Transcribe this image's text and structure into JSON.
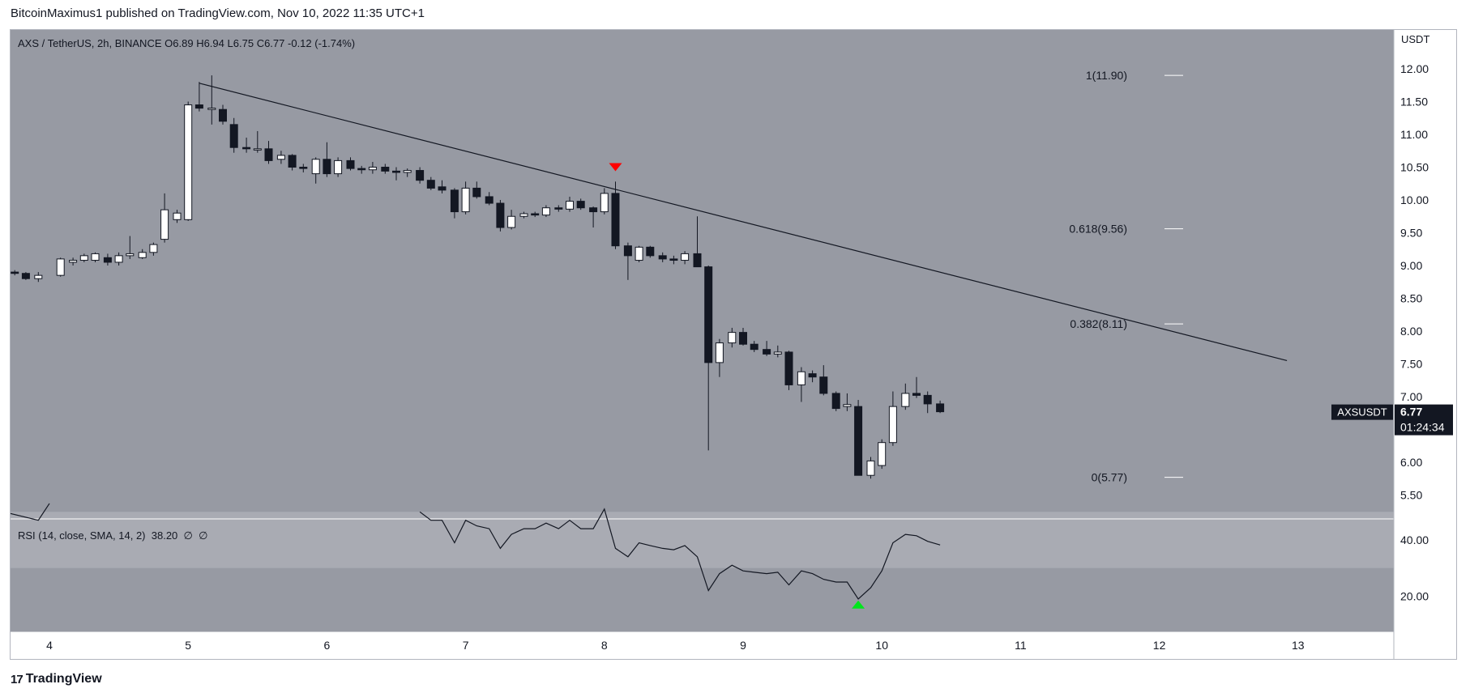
{
  "header": {
    "publisher_line": "BitcoinMaximus1 published on TradingView.com, Nov 10, 2022 11:35 UTC+1"
  },
  "legend": {
    "symbol": "AXS / TetherUS, 2h, BINANCE",
    "o_label": "O",
    "o_value": "6.89",
    "h_label": "H",
    "h_value": "6.94",
    "l_label": "L",
    "l_value": "6.75",
    "c_label": "C",
    "c_value": "6.77",
    "change": "-0.12 (-1.74%)"
  },
  "rsi_legend": {
    "label": "RSI (14, close, SMA, 14, 2)",
    "value": "38.20",
    "extra1": "∅",
    "extra2": "∅"
  },
  "price_axis": {
    "currency": "USDT",
    "ticks": [
      "12.00",
      "11.50",
      "11.00",
      "10.50",
      "10.00",
      "9.50",
      "9.00",
      "8.50",
      "8.00",
      "7.50",
      "7.00",
      "6.50",
      "6.00",
      "5.50"
    ]
  },
  "rsi_axis": {
    "ticks": [
      "40.00",
      "20.00"
    ]
  },
  "time_axis": {
    "ticks": [
      "4",
      "5",
      "6",
      "7",
      "8",
      "9",
      "10",
      "11",
      "12",
      "13"
    ]
  },
  "last_price": {
    "symbol": "AXSUSDT",
    "price": "6.77",
    "countdown": "01:24:34"
  },
  "fib_levels": [
    {
      "label": "1(11.90)",
      "price": 11.9
    },
    {
      "label": "0.618(9.56)",
      "price": 9.56
    },
    {
      "label": "0.382(8.11)",
      "price": 8.11
    },
    {
      "label": "0(5.77)",
      "price": 5.77
    }
  ],
  "footer": {
    "brand": "TradingView",
    "logo": "17"
  },
  "colors": {
    "pane_bg": "#979aa3",
    "rsi_band": "#a9abb3",
    "bull_candle": "#ffffff",
    "bear_candle": "#131722",
    "bear_marker": "#ff0000",
    "bull_marker": "#00e61c",
    "trend_line": "#131722",
    "rsi_line": "#131722"
  },
  "chart_data": {
    "type": "candlestick",
    "symbol": "AXS / TetherUS",
    "interval": "2h",
    "exchange": "BINANCE",
    "x_axis": {
      "ticks": [
        4,
        5,
        6,
        7,
        8,
        9,
        10,
        11,
        12,
        13
      ]
    },
    "y_range": [
      5.2,
      12.4
    ],
    "candles": [
      {
        "t": 3.67,
        "o": 8.92,
        "h": 8.95,
        "l": 8.88,
        "c": 8.9
      },
      {
        "t": 3.75,
        "o": 8.9,
        "h": 8.93,
        "l": 8.85,
        "c": 8.88
      },
      {
        "t": 3.83,
        "o": 8.88,
        "h": 8.9,
        "l": 8.78,
        "c": 8.8
      },
      {
        "t": 3.92,
        "o": 8.8,
        "h": 8.9,
        "l": 8.75,
        "c": 8.85
      },
      {
        "t": 4.08,
        "o": 8.85,
        "h": 9.12,
        "l": 8.83,
        "c": 9.1
      },
      {
        "t": 4.17,
        "o": 9.05,
        "h": 9.12,
        "l": 9.0,
        "c": 9.08
      },
      {
        "t": 4.25,
        "o": 9.08,
        "h": 9.18,
        "l": 9.05,
        "c": 9.15
      },
      {
        "t": 4.33,
        "o": 9.08,
        "h": 9.2,
        "l": 9.05,
        "c": 9.18
      },
      {
        "t": 4.42,
        "o": 9.12,
        "h": 9.18,
        "l": 9.0,
        "c": 9.05
      },
      {
        "t": 4.5,
        "o": 9.05,
        "h": 9.2,
        "l": 9.0,
        "c": 9.15
      },
      {
        "t": 4.58,
        "o": 9.15,
        "h": 9.45,
        "l": 9.1,
        "c": 9.18
      },
      {
        "t": 4.67,
        "o": 9.12,
        "h": 9.25,
        "l": 9.1,
        "c": 9.2
      },
      {
        "t": 4.75,
        "o": 9.2,
        "h": 9.35,
        "l": 9.15,
        "c": 9.32
      },
      {
        "t": 4.83,
        "o": 9.4,
        "h": 10.1,
        "l": 9.35,
        "c": 9.85
      },
      {
        "t": 4.92,
        "o": 9.7,
        "h": 9.85,
        "l": 9.65,
        "c": 9.8
      },
      {
        "t": 5.0,
        "o": 9.7,
        "h": 11.5,
        "l": 9.68,
        "c": 11.45
      },
      {
        "t": 5.08,
        "o": 11.45,
        "h": 11.8,
        "l": 11.35,
        "c": 11.4
      },
      {
        "t": 5.17,
        "o": 11.38,
        "h": 11.9,
        "l": 11.15,
        "c": 11.4
      },
      {
        "t": 5.25,
        "o": 11.38,
        "h": 11.45,
        "l": 11.15,
        "c": 11.2
      },
      {
        "t": 5.33,
        "o": 11.15,
        "h": 11.25,
        "l": 10.72,
        "c": 10.8
      },
      {
        "t": 5.42,
        "o": 10.8,
        "h": 10.95,
        "l": 10.72,
        "c": 10.78
      },
      {
        "t": 5.5,
        "o": 10.78,
        "h": 11.05,
        "l": 10.72,
        "c": 10.78
      },
      {
        "t": 5.58,
        "o": 10.78,
        "h": 10.9,
        "l": 10.55,
        "c": 10.6
      },
      {
        "t": 5.67,
        "o": 10.62,
        "h": 10.75,
        "l": 10.55,
        "c": 10.68
      },
      {
        "t": 5.75,
        "o": 10.68,
        "h": 10.7,
        "l": 10.45,
        "c": 10.5
      },
      {
        "t": 5.83,
        "o": 10.5,
        "h": 10.55,
        "l": 10.42,
        "c": 10.48
      },
      {
        "t": 5.92,
        "o": 10.4,
        "h": 10.65,
        "l": 10.25,
        "c": 10.62
      },
      {
        "t": 6.0,
        "o": 10.62,
        "h": 10.88,
        "l": 10.35,
        "c": 10.4
      },
      {
        "t": 6.08,
        "o": 10.4,
        "h": 10.65,
        "l": 10.35,
        "c": 10.6
      },
      {
        "t": 6.17,
        "o": 10.6,
        "h": 10.65,
        "l": 10.45,
        "c": 10.48
      },
      {
        "t": 6.25,
        "o": 10.48,
        "h": 10.52,
        "l": 10.4,
        "c": 10.46
      },
      {
        "t": 6.33,
        "o": 10.46,
        "h": 10.58,
        "l": 10.4,
        "c": 10.5
      },
      {
        "t": 6.42,
        "o": 10.5,
        "h": 10.55,
        "l": 10.4,
        "c": 10.44
      },
      {
        "t": 6.5,
        "o": 10.44,
        "h": 10.5,
        "l": 10.3,
        "c": 10.42
      },
      {
        "t": 6.58,
        "o": 10.42,
        "h": 10.48,
        "l": 10.35,
        "c": 10.45
      },
      {
        "t": 6.67,
        "o": 10.45,
        "h": 10.5,
        "l": 10.25,
        "c": 10.3
      },
      {
        "t": 6.75,
        "o": 10.3,
        "h": 10.35,
        "l": 10.15,
        "c": 10.18
      },
      {
        "t": 6.83,
        "o": 10.2,
        "h": 10.3,
        "l": 10.1,
        "c": 10.15
      },
      {
        "t": 6.92,
        "o": 10.15,
        "h": 10.18,
        "l": 9.72,
        "c": 9.82
      },
      {
        "t": 7.0,
        "o": 9.82,
        "h": 10.28,
        "l": 9.78,
        "c": 10.18
      },
      {
        "t": 7.08,
        "o": 10.18,
        "h": 10.28,
        "l": 10.02,
        "c": 10.05
      },
      {
        "t": 7.17,
        "o": 10.05,
        "h": 10.12,
        "l": 9.92,
        "c": 9.95
      },
      {
        "t": 7.25,
        "o": 9.95,
        "h": 10.0,
        "l": 9.52,
        "c": 9.58
      },
      {
        "t": 7.33,
        "o": 9.58,
        "h": 9.85,
        "l": 9.55,
        "c": 9.75
      },
      {
        "t": 7.42,
        "o": 9.75,
        "h": 9.82,
        "l": 9.72,
        "c": 9.79
      },
      {
        "t": 7.5,
        "o": 9.79,
        "h": 9.82,
        "l": 9.74,
        "c": 9.77
      },
      {
        "t": 7.58,
        "o": 9.77,
        "h": 9.92,
        "l": 9.74,
        "c": 9.88
      },
      {
        "t": 7.67,
        "o": 9.88,
        "h": 9.92,
        "l": 9.82,
        "c": 9.86
      },
      {
        "t": 7.75,
        "o": 9.86,
        "h": 10.05,
        "l": 9.82,
        "c": 9.98
      },
      {
        "t": 7.83,
        "o": 9.98,
        "h": 10.02,
        "l": 9.85,
        "c": 9.88
      },
      {
        "t": 7.92,
        "o": 9.88,
        "h": 9.9,
        "l": 9.58,
        "c": 9.82
      },
      {
        "t": 8.0,
        "o": 9.82,
        "h": 10.18,
        "l": 9.78,
        "c": 10.1
      },
      {
        "t": 8.08,
        "o": 10.1,
        "h": 10.28,
        "l": 9.25,
        "c": 9.3
      },
      {
        "t": 8.17,
        "o": 9.3,
        "h": 9.35,
        "l": 8.78,
        "c": 9.15
      },
      {
        "t": 8.25,
        "o": 9.08,
        "h": 9.3,
        "l": 9.05,
        "c": 9.28
      },
      {
        "t": 8.33,
        "o": 9.28,
        "h": 9.3,
        "l": 9.12,
        "c": 9.15
      },
      {
        "t": 8.42,
        "o": 9.15,
        "h": 9.2,
        "l": 9.05,
        "c": 9.1
      },
      {
        "t": 8.5,
        "o": 9.1,
        "h": 9.15,
        "l": 9.02,
        "c": 9.08
      },
      {
        "t": 8.58,
        "o": 9.08,
        "h": 9.22,
        "l": 9.02,
        "c": 9.18
      },
      {
        "t": 8.67,
        "o": 9.18,
        "h": 9.75,
        "l": 8.98,
        "c": 8.98
      },
      {
        "t": 8.75,
        "o": 8.98,
        "h": 9.0,
        "l": 6.18,
        "c": 7.52
      },
      {
        "t": 8.83,
        "o": 7.52,
        "h": 7.88,
        "l": 7.3,
        "c": 7.82
      },
      {
        "t": 8.92,
        "o": 7.82,
        "h": 8.05,
        "l": 7.75,
        "c": 7.98
      },
      {
        "t": 9.0,
        "o": 7.98,
        "h": 8.05,
        "l": 7.78,
        "c": 7.8
      },
      {
        "t": 9.08,
        "o": 7.8,
        "h": 7.85,
        "l": 7.68,
        "c": 7.72
      },
      {
        "t": 9.17,
        "o": 7.72,
        "h": 7.85,
        "l": 7.62,
        "c": 7.65
      },
      {
        "t": 9.25,
        "o": 7.65,
        "h": 7.78,
        "l": 7.6,
        "c": 7.68
      },
      {
        "t": 9.33,
        "o": 7.68,
        "h": 7.7,
        "l": 7.1,
        "c": 7.18
      },
      {
        "t": 9.42,
        "o": 7.18,
        "h": 7.45,
        "l": 6.92,
        "c": 7.38
      },
      {
        "t": 9.5,
        "o": 7.35,
        "h": 7.4,
        "l": 7.22,
        "c": 7.3
      },
      {
        "t": 9.58,
        "o": 7.3,
        "h": 7.48,
        "l": 7.02,
        "c": 7.05
      },
      {
        "t": 9.67,
        "o": 7.05,
        "h": 7.08,
        "l": 6.78,
        "c": 6.82
      },
      {
        "t": 9.75,
        "o": 6.85,
        "h": 7.05,
        "l": 6.78,
        "c": 6.88
      },
      {
        "t": 9.83,
        "o": 6.85,
        "h": 6.95,
        "l": 5.8,
        "c": 5.8
      },
      {
        "t": 9.92,
        "o": 5.8,
        "h": 6.08,
        "l": 5.75,
        "c": 6.02
      },
      {
        "t": 10.0,
        "o": 5.95,
        "h": 6.35,
        "l": 5.9,
        "c": 6.3
      },
      {
        "t": 10.08,
        "o": 6.3,
        "h": 7.08,
        "l": 6.25,
        "c": 6.85
      },
      {
        "t": 10.17,
        "o": 6.85,
        "h": 7.2,
        "l": 6.8,
        "c": 7.05
      },
      {
        "t": 10.25,
        "o": 7.05,
        "h": 7.3,
        "l": 6.98,
        "c": 7.02
      },
      {
        "t": 10.33,
        "o": 7.02,
        "h": 7.08,
        "l": 6.75,
        "c": 6.89
      },
      {
        "t": 10.42,
        "o": 6.89,
        "h": 6.94,
        "l": 6.75,
        "c": 6.77
      }
    ],
    "trendline": {
      "points": [
        {
          "t": 5.08,
          "price": 11.78
        },
        {
          "t": 12.92,
          "price": 7.55
        }
      ]
    },
    "markers": [
      {
        "type": "bearish-triangle",
        "t": 8.08,
        "price": 10.5
      },
      {
        "type": "bullish-triangle",
        "t": 9.83,
        "rsi": 17
      }
    ],
    "rsi": {
      "period": 14,
      "band": [
        30,
        50
      ],
      "y_range": [
        10,
        50
      ],
      "points": [
        {
          "t": 3.67,
          "v": 50
        },
        {
          "t": 3.92,
          "v": 47
        },
        {
          "t": 4.0,
          "v": 53
        },
        {
          "t": 6.67,
          "v": 50
        },
        {
          "t": 6.75,
          "v": 47
        },
        {
          "t": 6.83,
          "v": 47
        },
        {
          "t": 6.92,
          "v": 39
        },
        {
          "t": 7.0,
          "v": 47
        },
        {
          "t": 7.08,
          "v": 45
        },
        {
          "t": 7.17,
          "v": 44
        },
        {
          "t": 7.25,
          "v": 37
        },
        {
          "t": 7.33,
          "v": 42
        },
        {
          "t": 7.42,
          "v": 44
        },
        {
          "t": 7.5,
          "v": 44
        },
        {
          "t": 7.58,
          "v": 46
        },
        {
          "t": 7.67,
          "v": 44
        },
        {
          "t": 7.75,
          "v": 47
        },
        {
          "t": 7.83,
          "v": 44
        },
        {
          "t": 7.92,
          "v": 44
        },
        {
          "t": 8.0,
          "v": 51
        },
        {
          "t": 8.08,
          "v": 37
        },
        {
          "t": 8.17,
          "v": 34
        },
        {
          "t": 8.25,
          "v": 39
        },
        {
          "t": 8.33,
          "v": 38
        },
        {
          "t": 8.42,
          "v": 37
        },
        {
          "t": 8.5,
          "v": 36.5
        },
        {
          "t": 8.58,
          "v": 38
        },
        {
          "t": 8.67,
          "v": 34
        },
        {
          "t": 8.75,
          "v": 22
        },
        {
          "t": 8.83,
          "v": 28
        },
        {
          "t": 8.92,
          "v": 31
        },
        {
          "t": 9.0,
          "v": 29
        },
        {
          "t": 9.08,
          "v": 28.5
        },
        {
          "t": 9.17,
          "v": 28
        },
        {
          "t": 9.25,
          "v": 28.5
        },
        {
          "t": 9.33,
          "v": 24
        },
        {
          "t": 9.42,
          "v": 29
        },
        {
          "t": 9.5,
          "v": 28
        },
        {
          "t": 9.58,
          "v": 26
        },
        {
          "t": 9.67,
          "v": 25
        },
        {
          "t": 9.75,
          "v": 25
        },
        {
          "t": 9.83,
          "v": 19
        },
        {
          "t": 9.92,
          "v": 23
        },
        {
          "t": 10.0,
          "v": 29
        },
        {
          "t": 10.08,
          "v": 39
        },
        {
          "t": 10.17,
          "v": 42
        },
        {
          "t": 10.25,
          "v": 41.5
        },
        {
          "t": 10.33,
          "v": 39.5
        },
        {
          "t": 10.42,
          "v": 38.2
        }
      ]
    }
  }
}
